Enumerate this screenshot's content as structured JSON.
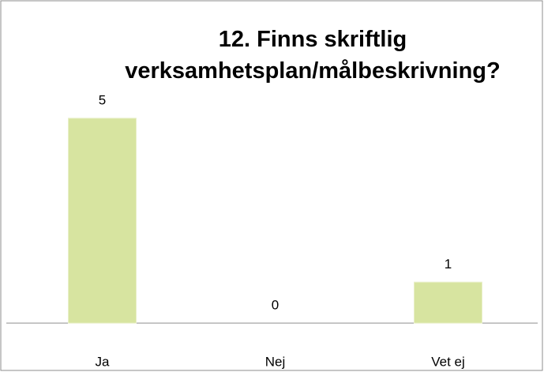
{
  "chart_data": {
    "type": "bar",
    "title": "12. Finns skriftlig verksamhetsplan/målbeskrivning?",
    "categories": [
      "Ja",
      "Nej",
      "Vet ej"
    ],
    "values": [
      5,
      0,
      1
    ],
    "color": "#d7e4a0",
    "ylim": [
      0,
      5
    ],
    "grid": false
  }
}
